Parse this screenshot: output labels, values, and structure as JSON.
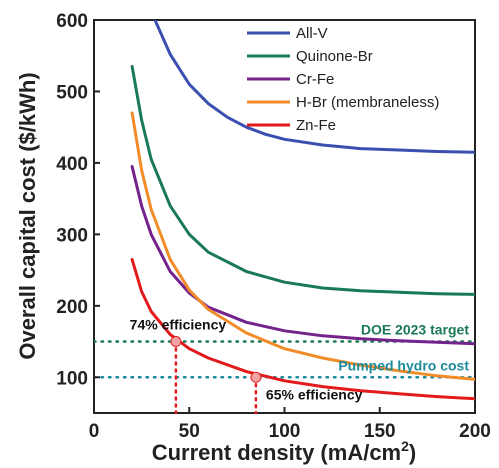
{
  "chart_data": {
    "type": "line",
    "xlabel": "Current density (mA/cm",
    "xlabel_sup": "2",
    "xlabel_tail": ")",
    "ylabel": "Overall capital cost ($/kWh)",
    "xlim": [
      0,
      200
    ],
    "ylim": [
      50,
      600
    ],
    "xticks": [
      "0",
      "50",
      "100",
      "150",
      "200"
    ],
    "yticks": [
      "100",
      "200",
      "300",
      "400",
      "500",
      "600"
    ],
    "legend_position": "top-right",
    "series": [
      {
        "name": "All-V",
        "color": "#3a4fb0",
        "x": [
          32,
          40,
          50,
          60,
          70,
          80,
          90,
          100,
          120,
          140,
          160,
          180,
          200
        ],
        "y": [
          600,
          552,
          510,
          483,
          464,
          450,
          440,
          433,
          425,
          420,
          418,
          416,
          415
        ]
      },
      {
        "name": "Quinone-Br",
        "color": "#1a7a55",
        "x": [
          20,
          25,
          30,
          40,
          50,
          60,
          80,
          100,
          120,
          140,
          160,
          180,
          200
        ],
        "y": [
          535,
          460,
          405,
          340,
          300,
          275,
          248,
          233,
          225,
          221,
          219,
          217,
          216
        ]
      },
      {
        "name": "Cr-Fe",
        "color": "#74228c",
        "x": [
          20,
          25,
          30,
          40,
          50,
          60,
          80,
          100,
          120,
          140,
          160,
          180,
          200
        ],
        "y": [
          395,
          340,
          300,
          248,
          218,
          198,
          177,
          165,
          158,
          154,
          151,
          149,
          147
        ]
      },
      {
        "name": "H-Br (membraneless)",
        "color": "#f28c28",
        "x": [
          20,
          25,
          30,
          40,
          50,
          60,
          80,
          100,
          120,
          140,
          160,
          180,
          200
        ],
        "y": [
          470,
          390,
          335,
          265,
          222,
          195,
          162,
          140,
          127,
          117,
          109,
          102,
          97
        ]
      },
      {
        "name": "Zn-Fe",
        "color": "#e31a1c",
        "x": [
          20,
          25,
          30,
          40,
          50,
          60,
          80,
          100,
          120,
          140,
          160,
          180,
          200
        ],
        "y": [
          265,
          220,
          192,
          160,
          140,
          127,
          108,
          95,
          87,
          81,
          77,
          73,
          70
        ]
      }
    ],
    "reference_lines": [
      {
        "label": "DOE 2023 target",
        "y": 150,
        "color": "#1a7a55"
      },
      {
        "label": "Pumped hydro cost",
        "y": 100,
        "color": "#1b8a9a"
      }
    ],
    "annotations": [
      {
        "label": "74% efficiency",
        "x": 43,
        "y": 150
      },
      {
        "label": "65% efficiency",
        "x": 85,
        "y": 100
      }
    ]
  }
}
